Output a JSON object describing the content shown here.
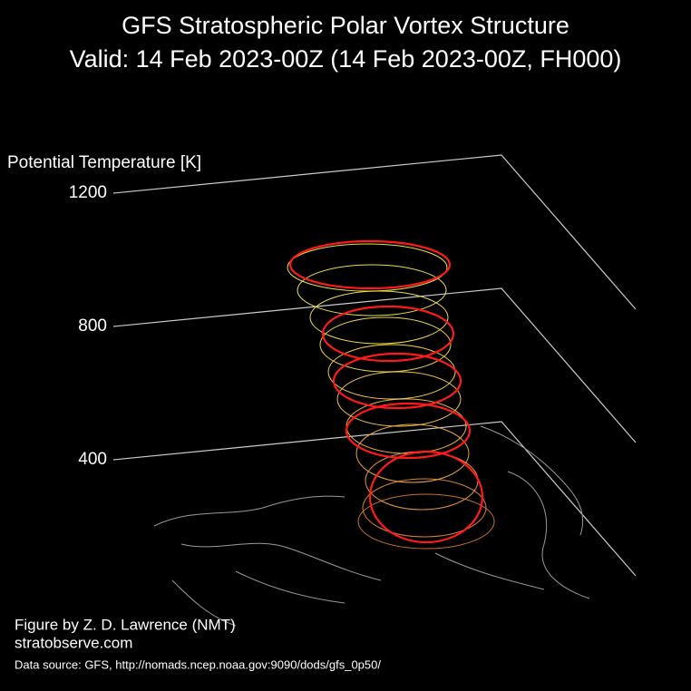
{
  "chart_data": {
    "type": "vortex3d",
    "title": "GFS Stratospheric Polar Vortex Structure",
    "subtitle": "Valid: 14 Feb 2023-00Z  (14 Feb 2023-00Z, FH000)",
    "zlabel": "Potential Temperature [K]",
    "zlim": [
      400,
      1200
    ],
    "zticks": [
      400,
      800,
      1200
    ],
    "credit": "Figure by Z. D. Lawrence (NMT)",
    "website": "stratobserve.com",
    "source": "Data source: GFS, http://nomads.ncep.noaa.gov:9090/dods/gfs_0p50/"
  }
}
